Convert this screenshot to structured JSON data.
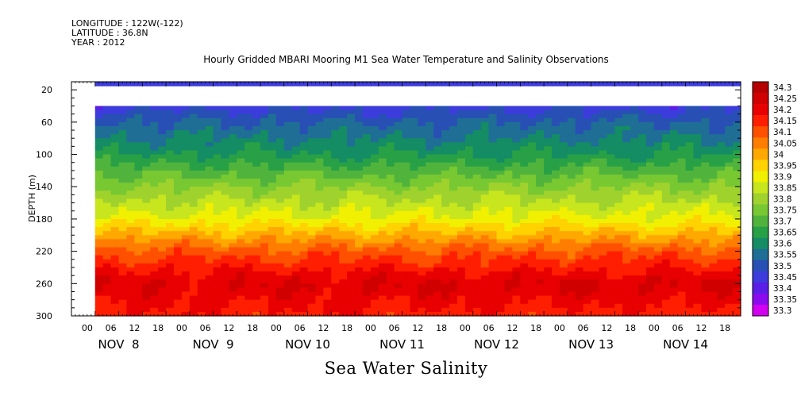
{
  "meta": {
    "longitude": "LONGITUDE : 122W(-122)",
    "latitude": "LATITUDE : 36.8N",
    "year": "YEAR : 2012"
  },
  "chart_data": {
    "type": "heatmap",
    "title": "Hourly Gridded MBARI Mooring M1 Sea Water Temperature and Salinity Observations",
    "subtitle": "Sea Water Salinity",
    "xlabel": "",
    "ylabel": "DEPTH (m)",
    "x_hour_ticks": [
      "00",
      "06",
      "12",
      "18",
      "00",
      "06",
      "12",
      "18",
      "00",
      "06",
      "12",
      "18",
      "00",
      "06",
      "12",
      "18",
      "00",
      "06",
      "12",
      "18",
      "00",
      "06",
      "12",
      "18",
      "00",
      "06",
      "12",
      "18"
    ],
    "x_day_labels": [
      "NOV  8",
      "NOV  9",
      "NOV 10",
      "NOV 11",
      "NOV 12",
      "NOV 13",
      "NOV 14"
    ],
    "y_ticks": [
      20,
      60,
      100,
      140,
      180,
      220,
      260,
      300
    ],
    "ylim": [
      300,
      10
    ],
    "x_range_hours": [
      0,
      170
    ],
    "data_start_hour": 6,
    "colorbar_levels": [
      "34.3",
      "34.25",
      "34.2",
      "34.15",
      "34.1",
      "34.05",
      "34",
      "33.95",
      "33.9",
      "33.85",
      "33.8",
      "33.75",
      "33.7",
      "33.65",
      "33.6",
      "33.55",
      "33.5",
      "33.45",
      "33.4",
      "33.35",
      "33.3"
    ],
    "colorbar_colors": [
      "#b40000",
      "#d00000",
      "#e80000",
      "#ff1e00",
      "#ff5000",
      "#ff7d00",
      "#ffa800",
      "#ffd200",
      "#f0f000",
      "#c8e61e",
      "#a0d22d",
      "#78c832",
      "#50b43c",
      "#28a046",
      "#148c64",
      "#1e6e96",
      "#2850b4",
      "#3c3cdc",
      "#5a1ee6",
      "#8c0af0",
      "#d200f0"
    ],
    "depth_profile": [
      {
        "depth": 10,
        "value": 33.45
      },
      {
        "depth": 40,
        "value": 33.48
      },
      {
        "depth": 60,
        "value": 33.55
      },
      {
        "depth": 100,
        "value": 33.65
      },
      {
        "depth": 140,
        "value": 33.8
      },
      {
        "depth": 180,
        "value": 33.92
      },
      {
        "depth": 220,
        "value": 34.12
      },
      {
        "depth": 260,
        "value": 34.25
      },
      {
        "depth": 300,
        "value": 34.18
      }
    ],
    "missing_depth_range": [
      15,
      40
    ]
  }
}
